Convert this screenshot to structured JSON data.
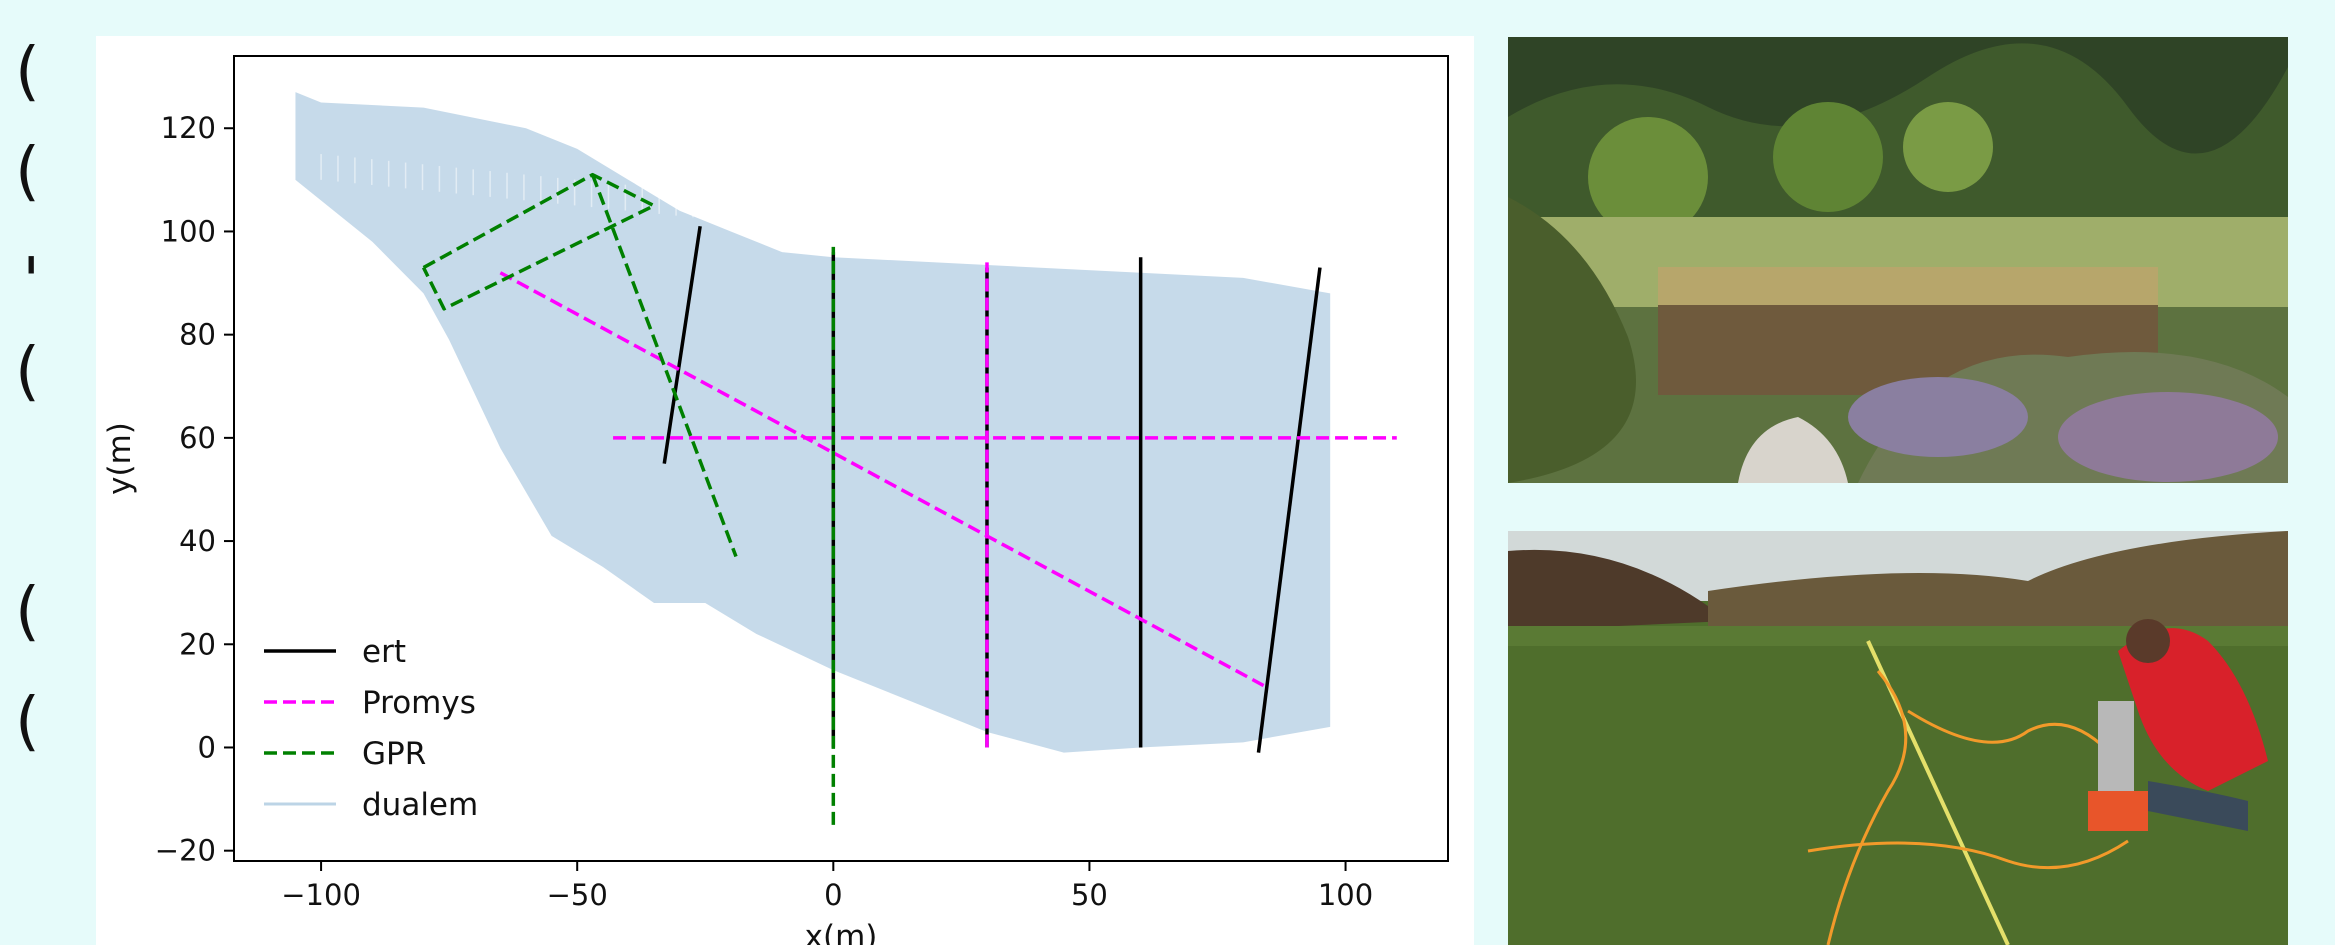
{
  "chart_data": {
    "type": "line",
    "title": "",
    "xlabel": "x(m)",
    "ylabel": "y(m)",
    "xlim": [
      -117,
      120
    ],
    "ylim": [
      -22,
      134
    ],
    "x_ticks": [
      -100,
      -50,
      0,
      50,
      100
    ],
    "x_tick_labels": [
      "−100",
      "−50",
      "0",
      "50",
      "100"
    ],
    "y_ticks": [
      -20,
      0,
      20,
      40,
      60,
      80,
      100,
      120
    ],
    "y_tick_labels": [
      "−20",
      "0",
      "20",
      "40",
      "60",
      "80",
      "100",
      "120"
    ],
    "grid": false,
    "legend_position": "lower-left",
    "series": [
      {
        "name": "ert",
        "color": "#000000",
        "dash": "solid",
        "lines": [
          [
            [
              -33,
              55
            ],
            [
              -26,
              101
            ]
          ],
          [
            [
              0,
              0
            ],
            [
              0,
              96
            ]
          ],
          [
            [
              30,
              0
            ],
            [
              30,
              93
            ]
          ],
          [
            [
              60,
              0
            ],
            [
              60,
              95
            ]
          ],
          [
            [
              83,
              -1
            ],
            [
              95,
              93
            ]
          ]
        ]
      },
      {
        "name": "Promys",
        "color": "#ff00ff",
        "dash": "dashed",
        "lines": [
          [
            [
              -43,
              60
            ],
            [
              110,
              60
            ]
          ],
          [
            [
              -65,
              92
            ],
            [
              84,
              12
            ]
          ],
          [
            [
              30,
              0
            ],
            [
              30,
              94
            ]
          ]
        ]
      },
      {
        "name": "GPR",
        "color": "#008000",
        "dash": "dashed",
        "lines": [
          [
            [
              -80,
              93
            ],
            [
              -47,
              111
            ],
            [
              -35,
              105
            ],
            [
              -76,
              85
            ],
            [
              -80,
              93
            ]
          ],
          [
            [
              -47,
              111
            ],
            [
              -19,
              37
            ]
          ],
          [
            [
              0,
              -15
            ],
            [
              0,
              97
            ]
          ]
        ]
      },
      {
        "name": "dualem",
        "color": "#bcd4e6",
        "dash": "solid",
        "polygon": [
          [
            -105,
            127
          ],
          [
            -100,
            125
          ],
          [
            -80,
            124
          ],
          [
            -60,
            120
          ],
          [
            -50,
            116
          ],
          [
            -40,
            110
          ],
          [
            -30,
            104
          ],
          [
            -20,
            100
          ],
          [
            -10,
            96
          ],
          [
            0,
            95
          ],
          [
            20,
            94
          ],
          [
            40,
            93
          ],
          [
            60,
            92
          ],
          [
            80,
            91
          ],
          [
            97,
            88
          ],
          [
            97,
            4
          ],
          [
            80,
            1
          ],
          [
            60,
            0
          ],
          [
            45,
            -1
          ],
          [
            30,
            3
          ],
          [
            15,
            9
          ],
          [
            0,
            15
          ],
          [
            -15,
            22
          ],
          [
            -25,
            28
          ],
          [
            -35,
            28
          ],
          [
            -45,
            35
          ],
          [
            -55,
            41
          ],
          [
            -65,
            58
          ],
          [
            -75,
            79
          ],
          [
            -80,
            88
          ],
          [
            -90,
            98
          ],
          [
            -105,
            110
          ]
        ]
      }
    ]
  },
  "photos": {
    "top_description_icon": "landscape-photo",
    "bottom_description_icon": "field-survey-photo"
  },
  "edge_glyphs": [
    "(",
    "(",
    "'",
    "(",
    "(",
    "("
  ]
}
